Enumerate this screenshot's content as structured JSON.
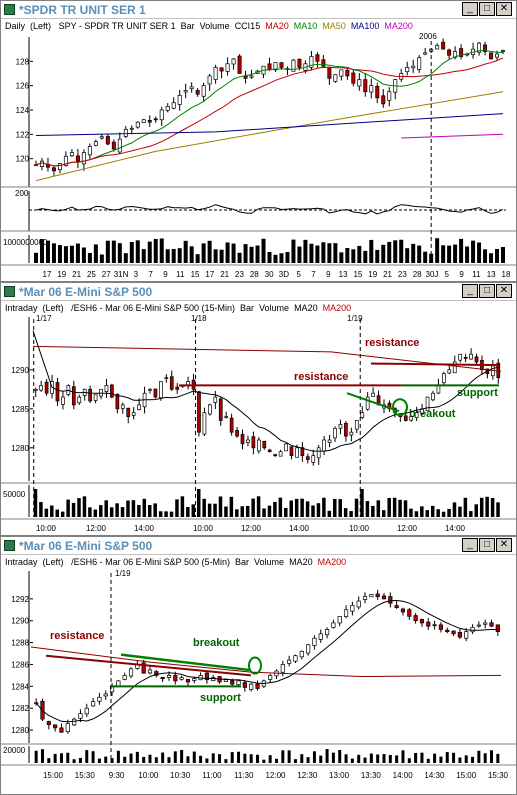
{
  "windows": [
    {
      "title": "*SPDR TR UNIT SER 1",
      "legend": [
        {
          "text": "Daily",
          "color": "#000000"
        },
        {
          "text": "(Left)",
          "color": "#000000"
        },
        {
          "text": "SPY - SPDR TR UNIT SER 1",
          "color": "#000000"
        },
        {
          "text": "Bar",
          "color": "#000000"
        },
        {
          "text": "Volume",
          "color": "#000000"
        },
        {
          "text": "CCI15",
          "color": "#000000"
        },
        {
          "text": "MA20",
          "color": "#c00000"
        },
        {
          "text": "MA10",
          "color": "#008000"
        },
        {
          "text": "MA50",
          "color": "#a08000"
        },
        {
          "text": "MA100",
          "color": "#000080"
        },
        {
          "text": "MA200",
          "color": "#c000c0"
        }
      ],
      "annotations": [
        {
          "text": "2006",
          "color": "#000000"
        }
      ],
      "volume_label": "1000000000",
      "cci_label": "200"
    },
    {
      "title": "*Mar 06  E-Mini S&P 500",
      "legend": [
        {
          "text": "Intraday",
          "color": "#000000"
        },
        {
          "text": "(Left)",
          "color": "#000000"
        },
        {
          "text": "/ESH6 - Mar 06  E-Mini S&P 500 (15-Min)",
          "color": "#000000"
        },
        {
          "text": "Bar",
          "color": "#000000"
        },
        {
          "text": "Volume",
          "color": "#000000"
        },
        {
          "text": "MA20",
          "color": "#000000"
        },
        {
          "text": "MA200",
          "color": "#c00000"
        }
      ],
      "day_labels": [
        "1/17",
        "1/18",
        "1/19"
      ],
      "annotations": [
        {
          "text": "resistance",
          "color": "#8b0000"
        },
        {
          "text": "resistance",
          "color": "#8b0000"
        },
        {
          "text": "support",
          "color": "#006400"
        },
        {
          "text": "breakout",
          "color": "#006400"
        }
      ],
      "volume_label": "50000"
    },
    {
      "title": "*Mar 06  E-Mini S&P 500",
      "legend": [
        {
          "text": "Intraday",
          "color": "#000000"
        },
        {
          "text": "(Left)",
          "color": "#000000"
        },
        {
          "text": "/ESH6 - Mar 06  E-Mini S&P 500 (5-Min)",
          "color": "#000000"
        },
        {
          "text": "Bar",
          "color": "#000000"
        },
        {
          "text": "Volume",
          "color": "#000000"
        },
        {
          "text": "MA20",
          "color": "#000000"
        },
        {
          "text": "MA200",
          "color": "#c00000"
        }
      ],
      "day_labels": [
        "1/19"
      ],
      "annotations": [
        {
          "text": "resistance",
          "color": "#8b0000"
        },
        {
          "text": "breakout",
          "color": "#006400"
        },
        {
          "text": "support",
          "color": "#006400"
        }
      ],
      "volume_label": "20000"
    }
  ],
  "chart_data": [
    {
      "type": "candlestick",
      "title": "*SPDR TR UNIT SER 1",
      "ylim": [
        118,
        130
      ],
      "yticks": [
        120,
        122,
        124,
        126,
        128
      ],
      "xticks": [
        "17",
        "19",
        "21",
        "25",
        "27",
        "31N",
        "3",
        "7",
        "9",
        "11",
        "15",
        "17",
        "21",
        "23",
        "28",
        "30",
        "3D",
        "5",
        "7",
        "9",
        "13",
        "15",
        "19",
        "21",
        "23",
        "28",
        "30J",
        "5",
        "9",
        "11",
        "13",
        "18"
      ],
      "close": [
        119.5,
        119.8,
        119.3,
        119.0,
        119.6,
        120.2,
        120.5,
        119.8,
        120.5,
        121.0,
        121.4,
        121.8,
        121.2,
        120.8,
        121.6,
        122.4,
        122.5,
        123.0,
        123.2,
        123.0,
        123.2,
        124.0,
        124.3,
        124.6,
        125.2,
        125.6,
        125.9,
        125.3,
        126.0,
        126.8,
        127.5,
        127.2,
        127.8,
        128.2,
        127.0,
        126.6,
        126.8,
        127.2,
        127.6,
        127.3,
        127.9,
        127.5,
        127.4,
        128.1,
        127.5,
        127.8,
        128.4,
        128.0,
        127.6,
        126.6,
        126.9,
        127.3,
        126.8,
        126.2,
        126.5,
        125.5,
        126.0,
        125.0,
        124.5,
        125.5,
        126.5,
        127.0,
        127.5,
        127.6,
        128.3,
        128.7,
        129.0,
        129.3,
        129.0,
        128.5,
        128.8,
        128.4,
        128.6,
        129.0,
        129.5,
        128.8,
        128.2,
        128.6,
        128.9
      ],
      "ma10_last": 128.1,
      "ma20_last": 127.5,
      "ma50_last": 125.5,
      "ma100_last": 123.7,
      "ma200_last": 122.0,
      "cci_range": [
        -300,
        300
      ]
    },
    {
      "type": "candlestick",
      "title": "*Mar 06  E-Mini S&P 500 (15-Min)",
      "ylim": [
        1276,
        1296
      ],
      "yticks": [
        1280,
        1285,
        1290
      ],
      "xticks": [
        "10:00",
        "12:00",
        "14:00",
        "10:00",
        "12:00",
        "14:00",
        "10:00",
        "12:00",
        "14:00"
      ],
      "close": [
        1287.5,
        1288.0,
        1287.0,
        1288.5,
        1286.0,
        1286.5,
        1288.0,
        1285.5,
        1286.5,
        1287.5,
        1286.0,
        1286.8,
        1287.5,
        1288.0,
        1286.5,
        1285.0,
        1285.5,
        1284.0,
        1284.5,
        1285.5,
        1287.0,
        1287.5,
        1286.5,
        1288.5,
        1289.0,
        1287.5,
        1287.5,
        1288.0,
        1288.5,
        1287.5,
        1282.0,
        1284.5,
        1285.5,
        1286.5,
        1283.5,
        1284.0,
        1282.0,
        1281.5,
        1280.5,
        1281.0,
        1280.0,
        1281.0,
        1280.0,
        1279.5,
        1279.0,
        1279.5,
        1280.5,
        1279.0,
        1280.0,
        1279.0,
        1278.5,
        1279.0,
        1280.0,
        1281.0,
        1281.0,
        1282.5,
        1283.0,
        1281.5,
        1282.0,
        1283.5,
        1284.5,
        1286.5,
        1287.0,
        1285.5,
        1285.5,
        1285.0,
        1284.5,
        1284.0,
        1283.5,
        1284.0,
        1284.5,
        1285.0,
        1286.5,
        1287.0,
        1288.0,
        1289.5,
        1290.0,
        1291.0,
        1292.0,
        1291.5,
        1292.0,
        1291.0,
        1290.0,
        1289.5,
        1290.5,
        1289.0
      ],
      "resistance": [
        1293.0,
        1288.0
      ],
      "support": 1288.0,
      "breakout": 1286.0
    },
    {
      "type": "candlestick",
      "title": "*Mar 06  E-Mini S&P 500 (5-Min)",
      "ylim": [
        1279,
        1294
      ],
      "yticks": [
        1280,
        1282,
        1284,
        1286,
        1288,
        1290,
        1292
      ],
      "xticks": [
        "15:00",
        "15:30",
        "9:30",
        "10:00",
        "10:30",
        "11:00",
        "11:30",
        "12:00",
        "12:30",
        "13:00",
        "13:30",
        "14:00",
        "14:30",
        "15:00",
        "15:30"
      ],
      "close": [
        1282.5,
        1281.0,
        1280.5,
        1280.2,
        1279.8,
        1280.6,
        1281.0,
        1281.5,
        1282.0,
        1282.6,
        1283.0,
        1283.3,
        1284.0,
        1284.5,
        1285.0,
        1285.6,
        1286.0,
        1285.2,
        1285.5,
        1285.0,
        1284.7,
        1285.0,
        1284.5,
        1284.8,
        1284.4,
        1284.7,
        1285.0,
        1284.6,
        1284.8,
        1284.4,
        1284.6,
        1284.2,
        1284.5,
        1283.9,
        1284.2,
        1283.8,
        1284.5,
        1285.0,
        1285.4,
        1286.0,
        1286.4,
        1286.8,
        1287.2,
        1287.8,
        1288.4,
        1288.8,
        1289.2,
        1289.8,
        1290.4,
        1291.0,
        1291.4,
        1291.8,
        1292.2,
        1292.4,
        1292.2,
        1292.0,
        1291.6,
        1291.2,
        1290.8,
        1290.4,
        1290.0,
        1289.8,
        1289.5,
        1289.6,
        1289.2,
        1289.0,
        1288.8,
        1288.5,
        1289.0,
        1289.4,
        1289.6,
        1289.8,
        1289.5,
        1289.0
      ],
      "resistance": 1286.8,
      "support": 1284.0,
      "breakout": 1286.5
    }
  ]
}
